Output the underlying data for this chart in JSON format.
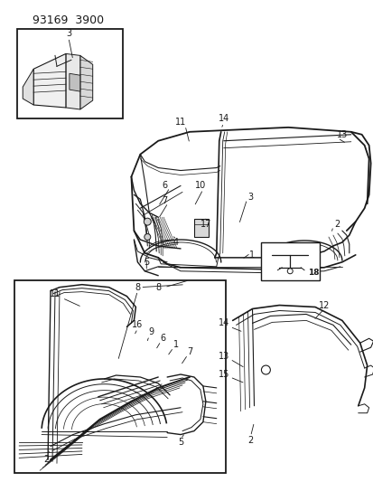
{
  "title": "93169  3900",
  "bg": "#ffffff",
  "lc": "#1a1a1a",
  "figsize": [
    4.14,
    5.33
  ],
  "dpi": 100
}
